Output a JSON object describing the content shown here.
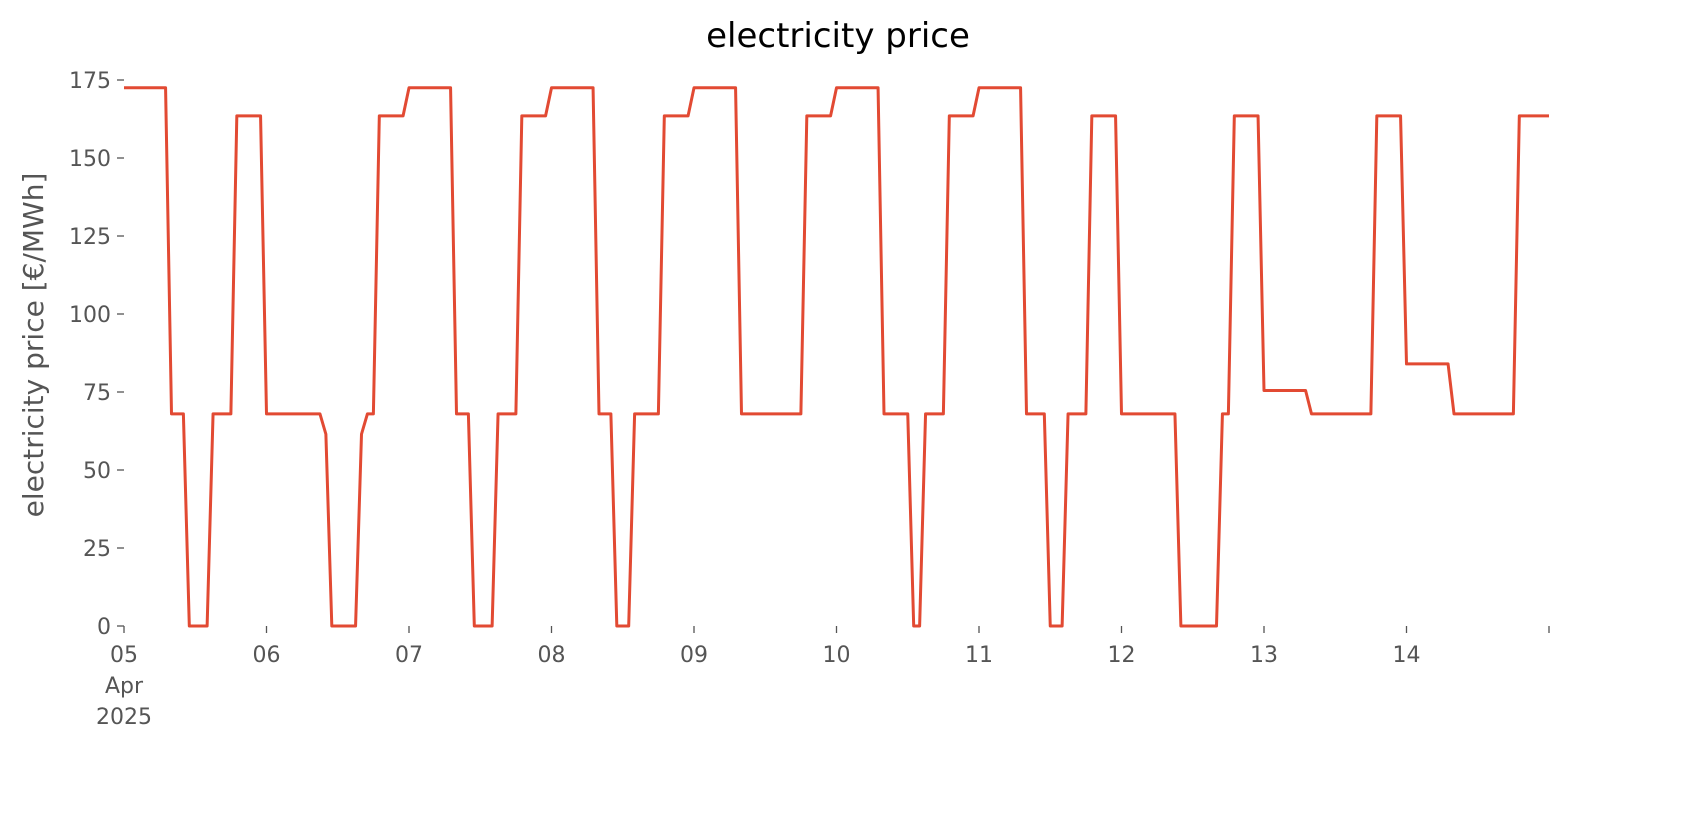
{
  "chart_data": {
    "type": "line",
    "title": "electricity price",
    "y_label": "electricity price [€/MWh]",
    "color": "#e24a33",
    "x": [
      5,
      5.2917,
      5.3333,
      5.4167,
      5.4583,
      5.5833,
      5.625,
      5.75,
      5.7917,
      5.9583,
      6,
      6.375,
      6.4167,
      6.4583,
      6.625,
      6.6667,
      6.7083,
      6.75,
      6.7917,
      6.9583,
      7,
      7.2917,
      7.3333,
      7.4167,
      7.4583,
      7.5833,
      7.625,
      7.75,
      7.7917,
      7.9583,
      8,
      8.2917,
      8.3333,
      8.4167,
      8.4583,
      8.5417,
      8.5833,
      8.75,
      8.7917,
      8.9583,
      9,
      9.2917,
      9.3333,
      9.75,
      9.7917,
      9.9583,
      10,
      10.2917,
      10.3333,
      10.5,
      10.5417,
      10.5833,
      10.625,
      10.75,
      10.7917,
      10.9583,
      11,
      11.2917,
      11.3333,
      11.4583,
      11.5,
      11.5833,
      11.625,
      11.75,
      11.7917,
      11.9583,
      12,
      12.375,
      12.4167,
      12.6667,
      12.7083,
      12.75,
      12.7917,
      12.9583,
      13,
      13.2917,
      13.3333,
      13.75,
      13.7917,
      13.9583,
      14,
      14.2917,
      14.3333,
      14.75,
      14.7917,
      15
    ],
    "values": [
      172.5,
      172.5,
      68,
      68,
      0,
      0,
      68,
      68,
      163.5,
      163.5,
      68,
      68,
      61.5,
      0,
      0,
      61.5,
      68,
      68,
      163.5,
      163.5,
      172.5,
      172.5,
      68,
      68,
      0,
      0,
      68,
      68,
      163.5,
      163.5,
      172.5,
      172.5,
      68,
      68,
      0,
      0,
      68,
      68,
      163.5,
      163.5,
      172.5,
      172.5,
      68,
      68,
      163.5,
      163.5,
      172.5,
      172.5,
      68,
      68,
      0,
      0,
      68,
      68,
      163.5,
      163.5,
      172.5,
      172.5,
      68,
      68,
      0,
      0,
      68,
      68,
      163.5,
      163.5,
      68,
      68,
      0,
      0,
      68,
      68,
      163.5,
      163.5,
      75.5,
      75.5,
      68,
      68,
      163.5,
      163.5,
      84,
      84,
      68,
      68,
      163.5,
      163.5
    ],
    "xlim": [
      5,
      15
    ],
    "xticks": [
      {
        "value": 5,
        "label": "05 Apr 2025"
      },
      {
        "value": 6,
        "label": "06"
      },
      {
        "value": 7,
        "label": "07"
      },
      {
        "value": 8,
        "label": "08"
      },
      {
        "value": 9,
        "label": "09"
      },
      {
        "value": 10,
        "label": "10"
      },
      {
        "value": 11,
        "label": "11"
      },
      {
        "value": 12,
        "label": "12"
      },
      {
        "value": 13,
        "label": "13"
      },
      {
        "value": 14,
        "label": "14"
      }
    ],
    "ylim": [
      0,
      175
    ],
    "yticks": [
      0,
      25,
      50,
      75,
      100,
      125,
      150,
      175
    ],
    "grid": false
  }
}
